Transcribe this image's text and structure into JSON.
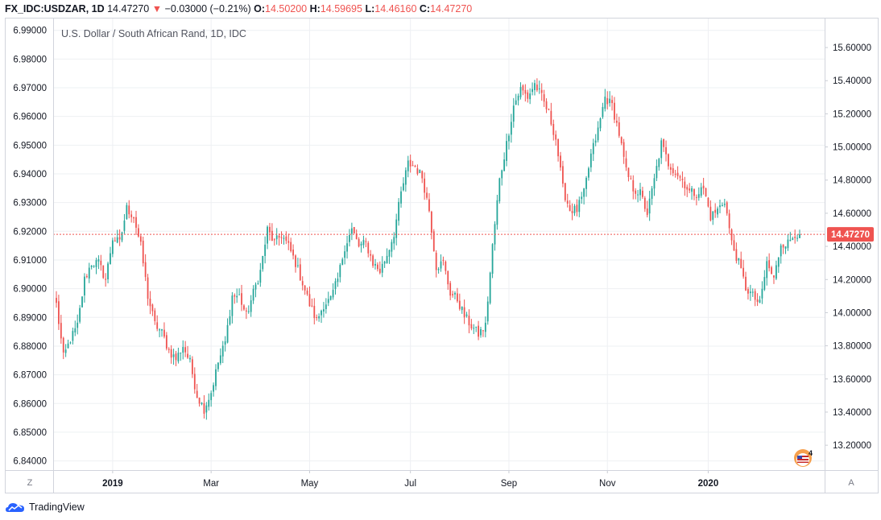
{
  "header": {
    "symbol": "FX_IDC:USDZAR, 1D",
    "last": "14.47270",
    "change": "−0.03000 (−0.21%)",
    "o_label": "O:",
    "o_value": "14.50200",
    "h_label": "H:",
    "h_value": "14.59695",
    "l_label": "L:",
    "l_value": "14.46160",
    "c_label": "C:",
    "c_value": "14.47270"
  },
  "colors": {
    "up": "#26a69a",
    "down": "#ef5350",
    "grid": "#eef0f3",
    "axis": "#787b86",
    "price_line": "#ef5350"
  },
  "controls": {
    "left": "Z",
    "right": "A"
  },
  "footer": {
    "brand": "TradingView"
  },
  "badge": {
    "count": "4"
  },
  "chart_data": {
    "type": "candlestick",
    "title": "U.S. Dollar / South African Rand, 1D, IDC",
    "left_axis": {
      "ticks": [
        "6.99000",
        "6.98000",
        "6.97000",
        "6.96000",
        "6.95000",
        "6.94000",
        "6.93000",
        "6.92000",
        "6.91000",
        "6.90000",
        "6.89000",
        "6.88000",
        "6.87000",
        "6.86000",
        "6.85000",
        "6.84000"
      ],
      "range": [
        6.8368,
        6.9944
      ]
    },
    "right_axis": {
      "ticks": [
        "15.60000",
        "15.40000",
        "15.20000",
        "15.00000",
        "14.80000",
        "14.60000",
        "14.40000",
        "14.20000",
        "14.00000",
        "13.80000",
        "13.60000",
        "13.40000",
        "13.20000"
      ],
      "range": [
        13.05,
        15.78
      ]
    },
    "x_labels": [
      "2019",
      "Mar",
      "May",
      "Jul",
      "Sep",
      "Nov",
      "2020"
    ],
    "last_price": 14.4727,
    "last_price_label": "14.47270",
    "anchors": [
      [
        0,
        14.05
      ],
      [
        3,
        13.73
      ],
      [
        6,
        13.84
      ],
      [
        9,
        13.92
      ],
      [
        12,
        14.2
      ],
      [
        15,
        14.3
      ],
      [
        18,
        14.3
      ],
      [
        21,
        14.2
      ],
      [
        24,
        14.45
      ],
      [
        27,
        14.42
      ],
      [
        30,
        14.63
      ],
      [
        33,
        14.58
      ],
      [
        36,
        14.4
      ],
      [
        39,
        14.1
      ],
      [
        42,
        13.93
      ],
      [
        45,
        13.88
      ],
      [
        48,
        13.77
      ],
      [
        51,
        13.72
      ],
      [
        54,
        13.8
      ],
      [
        57,
        13.7
      ],
      [
        60,
        13.5
      ],
      [
        63,
        13.42
      ],
      [
        66,
        13.52
      ],
      [
        69,
        13.7
      ],
      [
        72,
        13.82
      ],
      [
        75,
        14.1
      ],
      [
        78,
        14.1
      ],
      [
        81,
        13.98
      ],
      [
        84,
        14.12
      ],
      [
        87,
        14.25
      ],
      [
        90,
        14.5
      ],
      [
        93,
        14.42
      ],
      [
        96,
        14.47
      ],
      [
        99,
        14.4
      ],
      [
        102,
        14.3
      ],
      [
        105,
        14.18
      ],
      [
        108,
        14.05
      ],
      [
        111,
        13.95
      ],
      [
        114,
        14.05
      ],
      [
        117,
        14.08
      ],
      [
        120,
        14.2
      ],
      [
        123,
        14.4
      ],
      [
        126,
        14.5
      ],
      [
        129,
        14.4
      ],
      [
        132,
        14.42
      ],
      [
        135,
        14.3
      ],
      [
        138,
        14.25
      ],
      [
        141,
        14.35
      ],
      [
        144,
        14.48
      ],
      [
        147,
        14.72
      ],
      [
        150,
        14.9
      ],
      [
        153,
        14.88
      ],
      [
        156,
        14.82
      ],
      [
        159,
        14.62
      ],
      [
        162,
        14.28
      ],
      [
        165,
        14.3
      ],
      [
        168,
        14.12
      ],
      [
        171,
        14.08
      ],
      [
        174,
        13.98
      ],
      [
        177,
        13.92
      ],
      [
        180,
        13.87
      ],
      [
        183,
        13.92
      ],
      [
        186,
        14.4
      ],
      [
        189,
        14.8
      ],
      [
        192,
        15.02
      ],
      [
        195,
        15.25
      ],
      [
        198,
        15.35
      ],
      [
        201,
        15.3
      ],
      [
        204,
        15.38
      ],
      [
        207,
        15.3
      ],
      [
        210,
        15.2
      ],
      [
        213,
        15.05
      ],
      [
        216,
        14.75
      ],
      [
        219,
        14.62
      ],
      [
        222,
        14.62
      ],
      [
        225,
        14.72
      ],
      [
        228,
        14.95
      ],
      [
        231,
        15.1
      ],
      [
        234,
        15.3
      ],
      [
        237,
        15.25
      ],
      [
        240,
        15.08
      ],
      [
        243,
        14.85
      ],
      [
        246,
        14.75
      ],
      [
        249,
        14.72
      ],
      [
        252,
        14.6
      ],
      [
        255,
        14.8
      ],
      [
        258,
        15.02
      ],
      [
        261,
        14.9
      ],
      [
        264,
        14.85
      ],
      [
        267,
        14.8
      ],
      [
        270,
        14.73
      ],
      [
        273,
        14.72
      ],
      [
        276,
        14.75
      ],
      [
        279,
        14.58
      ],
      [
        282,
        14.62
      ],
      [
        285,
        14.68
      ],
      [
        288,
        14.42
      ],
      [
        291,
        14.3
      ],
      [
        294,
        14.15
      ],
      [
        297,
        14.1
      ],
      [
        300,
        14.05
      ],
      [
        303,
        14.3
      ],
      [
        306,
        14.2
      ],
      [
        309,
        14.42
      ],
      [
        312,
        14.42
      ],
      [
        315,
        14.48
      ],
      [
        317,
        14.47
      ]
    ]
  }
}
